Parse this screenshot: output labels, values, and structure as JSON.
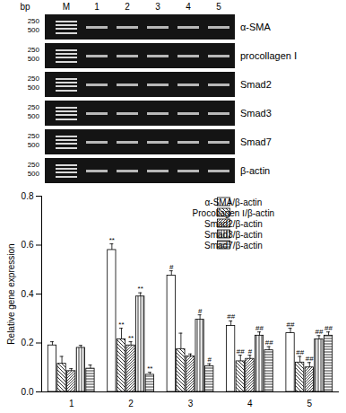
{
  "gel": {
    "size_unit": "bp",
    "ladder_lane": "M",
    "lanes": [
      "1",
      "2",
      "3",
      "4",
      "5"
    ],
    "strips": [
      {
        "name": "α-SMA",
        "ladder_labels": [
          "250",
          "500"
        ]
      },
      {
        "name": "procollagen Ⅰ",
        "ladder_labels": [
          "250",
          "500"
        ]
      },
      {
        "name": "Smad2",
        "ladder_labels": [
          "250",
          "500"
        ]
      },
      {
        "name": "Smad3",
        "ladder_labels": [
          "250",
          "500"
        ]
      },
      {
        "name": "Smad7",
        "ladder_labels": [
          "250",
          "500"
        ]
      },
      {
        "name": "β-actin",
        "ladder_labels": [
          "250",
          "500"
        ]
      }
    ]
  },
  "chart_data": {
    "type": "bar",
    "ylabel": "Relative gene expression",
    "categories": [
      "1",
      "2",
      "3",
      "4",
      "5"
    ],
    "ylim": [
      0,
      0.8
    ],
    "yticks": [
      {
        "value": 0,
        "label": "0.0"
      },
      {
        "value": 0.2,
        "label": "0.2"
      },
      {
        "value": 0.4,
        "label": "0.4"
      },
      {
        "value": 0.6,
        "label": "0.6"
      },
      {
        "value": 0.8,
        "label": "0.8"
      }
    ],
    "legend": "top-right",
    "series": [
      {
        "name": "α-SMA/β-actin",
        "color": "#ffffff",
        "values": [
          0.19,
          0.58,
          0.475,
          0.27,
          0.24
        ],
        "errors": [
          0.015,
          0.025,
          0.02,
          0.02,
          0.02
        ],
        "annotations": [
          null,
          "**",
          "#",
          "##",
          "##"
        ]
      },
      {
        "name": "Procollagen Ⅰ/β-actin",
        "color": "#ffffff",
        "values": [
          0.115,
          0.215,
          0.175,
          0.125,
          0.12
        ],
        "errors": [
          0.03,
          0.045,
          0.065,
          0.025,
          0.025
        ],
        "annotations": [
          null,
          "**",
          null,
          "##",
          "##"
        ]
      },
      {
        "name": "Smad2/β-actin",
        "color": "#ffffff",
        "values": [
          0.085,
          0.19,
          0.145,
          0.135,
          0.1
        ],
        "errors": [
          0.01,
          0.015,
          0.01,
          0.015,
          0.02
        ],
        "annotations": [
          null,
          "**",
          null,
          "#",
          "##"
        ]
      },
      {
        "name": "Smad3/β-actin",
        "color": "#ffffff",
        "values": [
          0.18,
          0.39,
          0.295,
          0.23,
          0.215
        ],
        "errors": [
          0.01,
          0.015,
          0.02,
          0.015,
          0.015
        ],
        "annotations": [
          null,
          "**",
          "#",
          "##",
          "##"
        ]
      },
      {
        "name": "Smad7/β-actin",
        "color": "#ffffff",
        "values": [
          0.095,
          0.07,
          0.105,
          0.17,
          0.23
        ],
        "errors": [
          0.015,
          0.01,
          0.01,
          0.015,
          0.015
        ],
        "annotations": [
          null,
          "**",
          "#",
          "##",
          "##"
        ]
      }
    ]
  }
}
